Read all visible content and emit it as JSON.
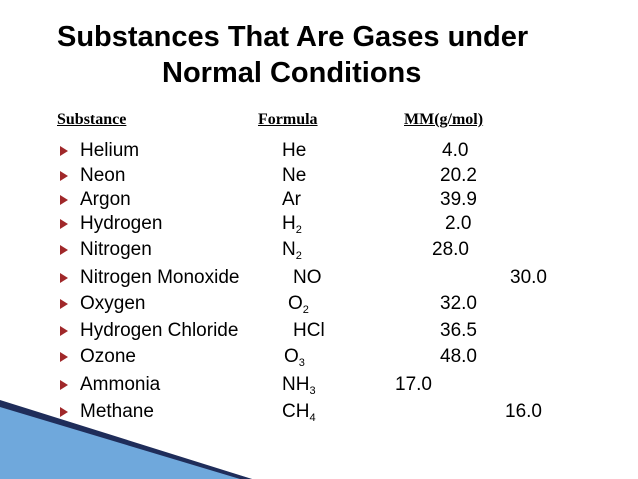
{
  "title": [
    "Substances That Are Gases under",
    "Normal Conditions"
  ],
  "table": {
    "headers": [
      "Substance",
      "Formula",
      "MM(g/mol)"
    ],
    "rows": [
      {
        "name": "Helium",
        "formula": "He",
        "mm": "4.0"
      },
      {
        "name": "Neon",
        "formula": "Ne",
        "mm": "20.2"
      },
      {
        "name": "Argon",
        "formula": "Ar",
        "mm": "39.9"
      },
      {
        "name": "Hydrogen",
        "formula": "H",
        "sub": "2",
        "mm": "2.0"
      },
      {
        "name": "Nitrogen",
        "formula": "N",
        "sub": "2",
        "mm": "28.0"
      },
      {
        "name": "Nitrogen Monoxide",
        "formula": "NO",
        "mm": "30.0"
      },
      {
        "name": "Oxygen",
        "formula": "O",
        "sub": "2",
        "mm": "32.0"
      },
      {
        "name": "Hydrogen Chloride",
        "formula": "HCl",
        "mm": "36.5"
      },
      {
        "name": "Ozone",
        "formula": "O",
        "sub": "3",
        "mm": "48.0"
      },
      {
        "name": "Ammonia",
        "formula": "NH",
        "sub": "3",
        "mm": "17.0"
      },
      {
        "name": "Methane",
        "formula": "CH",
        "sub": "4",
        "mm": "16.0"
      }
    ]
  }
}
